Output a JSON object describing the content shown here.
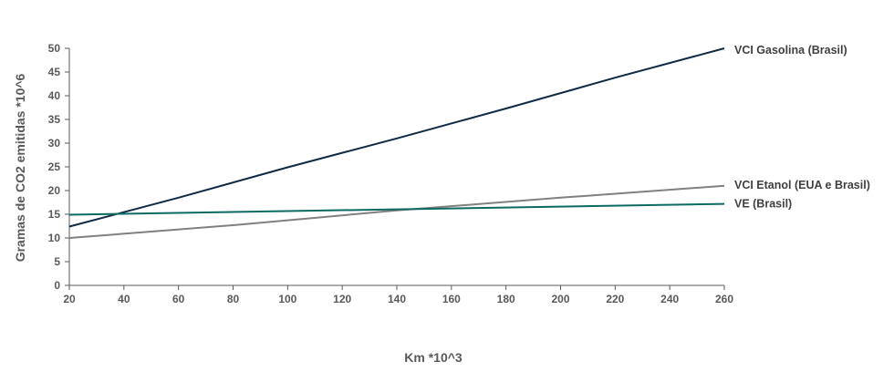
{
  "chart_data": {
    "type": "line",
    "xlabel": "Km *10^3",
    "ylabel": "Gramas de CO2 emitidas *10^6",
    "xlim": [
      20,
      260
    ],
    "ylim": [
      0,
      50
    ],
    "x_ticks": [
      "20",
      "40",
      "60",
      "80",
      "100",
      "120",
      "140",
      "160",
      "180",
      "200",
      "220",
      "240",
      "260"
    ],
    "y_ticks": [
      "0",
      "5",
      "10",
      "15",
      "20",
      "25",
      "30",
      "35",
      "40",
      "45",
      "50"
    ],
    "grid": false,
    "legend": "inline-right",
    "series": [
      {
        "name": "VCI Gasolina (Brasil)",
        "color": "#0f2a44",
        "x": [
          20,
          60,
          100,
          140,
          180,
          220,
          260
        ],
        "y": [
          12.4,
          18.5,
          24.9,
          31.0,
          37.3,
          43.8,
          50.0
        ]
      },
      {
        "name": "VCI Etanol (EUA e Brasil)",
        "color": "#808080",
        "x": [
          20,
          80,
          140,
          200,
          260
        ],
        "y": [
          10.0,
          12.7,
          15.8,
          18.5,
          21.0
        ]
      },
      {
        "name": "VE (Brasil)",
        "color": "#0b6b62",
        "x": [
          20,
          260
        ],
        "y": [
          14.9,
          17.2
        ]
      }
    ]
  }
}
